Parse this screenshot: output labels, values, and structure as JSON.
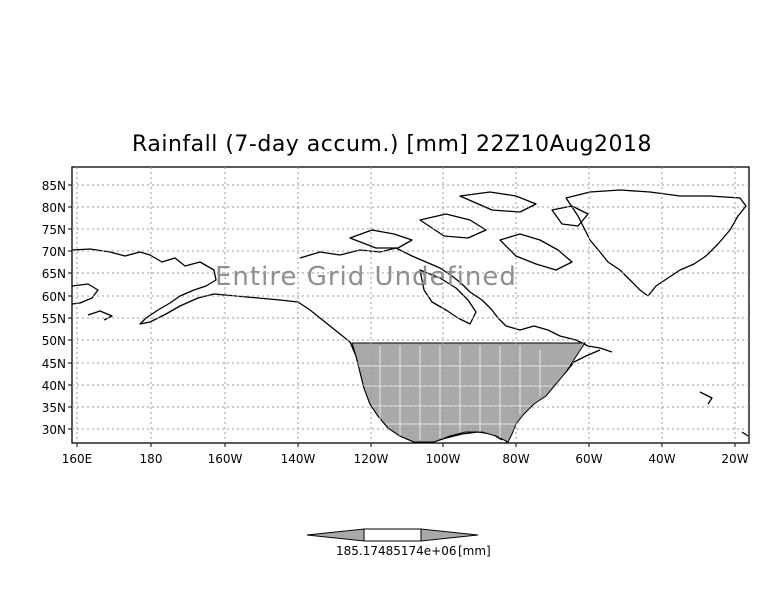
{
  "title": "Rainfall (7-day accum.) [mm] 22Z10Aug2018",
  "message": "Entire Grid Undefined",
  "axes": {
    "lat_labels": [
      "85N",
      "80N",
      "75N",
      "70N",
      "65N",
      "60N",
      "55N",
      "50N",
      "45N",
      "40N",
      "35N",
      "30N"
    ],
    "lon_labels": [
      "160E",
      "180",
      "160W",
      "140W",
      "120W",
      "100W",
      "80W",
      "60W",
      "40W",
      "20W"
    ]
  },
  "colorbar": {
    "values_text": "185.17485174e+06",
    "unit_text": "[mm]"
  },
  "colors": {
    "land_outline": "#000000",
    "shaded_region": "#a9a9a9",
    "grid": "#999999",
    "colorbar_fill": "#a9a9a9"
  }
}
